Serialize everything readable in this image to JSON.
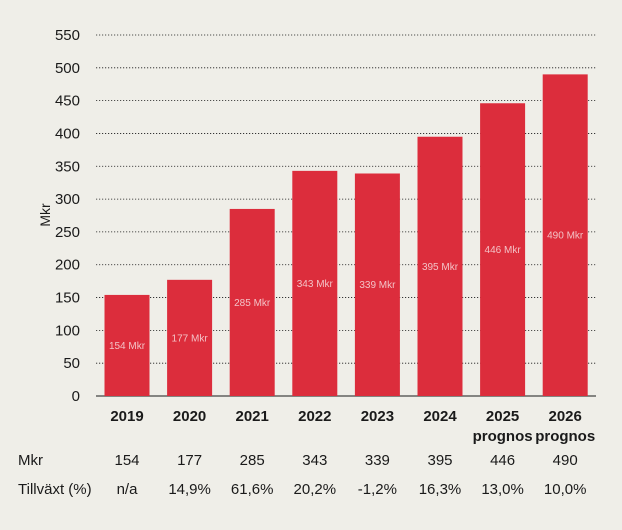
{
  "chart_data": {
    "type": "bar",
    "ylabel": "Mkr",
    "ylim": [
      0,
      550
    ],
    "yticks": [
      0,
      50,
      100,
      150,
      200,
      250,
      300,
      350,
      400,
      450,
      500,
      550
    ],
    "grid": true,
    "bar_color": "#dc2d3c",
    "categories": [
      "2019",
      "2020",
      "2021",
      "2022",
      "2023",
      "2024",
      "2025",
      "2026"
    ],
    "category_sublabels": [
      "",
      "",
      "",
      "",
      "",
      "",
      "prognos",
      "prognos"
    ],
    "values": [
      154,
      177,
      285,
      343,
      339,
      395,
      446,
      490
    ],
    "data_labels": [
      "154 Mkr",
      "177 Mkr",
      "285 Mkr",
      "343 Mkr",
      "339 Mkr",
      "395 Mkr",
      "446 Mkr",
      "490 Mkr"
    ]
  },
  "table": {
    "rows": [
      {
        "label": "Mkr",
        "values": [
          "154",
          "177",
          "285",
          "343",
          "339",
          "395",
          "446",
          "490"
        ]
      },
      {
        "label": "Tillväxt (%)",
        "values": [
          "n/a",
          "14,9%",
          "61,6%",
          "20,2%",
          "-1,2%",
          "16,3%",
          "13,0%",
          "10,0%"
        ]
      }
    ]
  }
}
